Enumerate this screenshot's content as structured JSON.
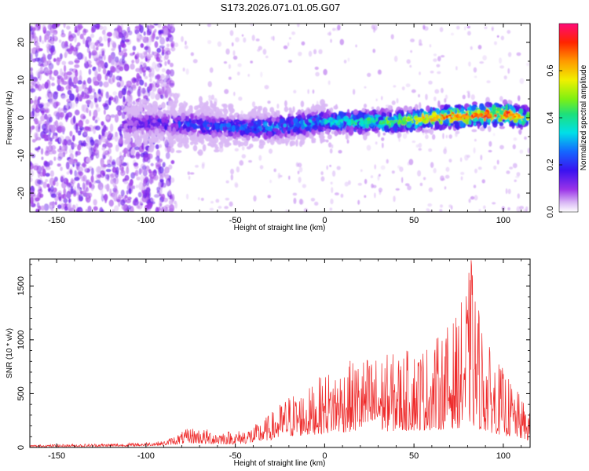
{
  "title": "S173.2026.071.01.05.G07",
  "chart_data": [
    {
      "type": "heatmap",
      "xlabel": "Height of straight line (km)",
      "ylabel": "Frequency (Hz)",
      "xlim": [
        -165,
        115
      ],
      "ylim": [
        -25,
        25
      ],
      "xticks": [
        -150,
        -100,
        -50,
        0,
        50,
        100
      ],
      "yticks": [
        -20,
        -10,
        0,
        10,
        20
      ],
      "colorbar": {
        "label": "Normalized spectral amplitude",
        "range": [
          0,
          0.8
        ],
        "ticks": [
          0.0,
          0.2,
          0.4,
          0.6
        ]
      },
      "ridge": {
        "x": [
          -110,
          -90,
          -70,
          -50,
          -30,
          -10,
          0,
          20,
          40,
          60,
          80,
          100,
          112
        ],
        "frequency_hz": [
          -1.5,
          -1.5,
          -2,
          -2.5,
          -2.5,
          -1.5,
          -1,
          -1,
          -1,
          0,
          0.5,
          1,
          0
        ],
        "peak_amplitude": [
          0.15,
          0.2,
          0.25,
          0.25,
          0.3,
          0.35,
          0.35,
          0.4,
          0.45,
          0.6,
          0.7,
          0.75,
          0.55
        ]
      },
      "grid": false
    },
    {
      "type": "line",
      "xlabel": "Height of straight line (km)",
      "ylabel": "SNR (10 * v/v)",
      "xlim": [
        -165,
        115
      ],
      "ylim": [
        0,
        1750
      ],
      "xticks": [
        -150,
        -100,
        -50,
        0,
        50,
        100
      ],
      "yticks": [
        0,
        500,
        1000,
        1500
      ],
      "color": "#ee2a2a",
      "envelope": {
        "x": [
          -165,
          -110,
          -90,
          -75,
          -65,
          -50,
          -40,
          -30,
          -20,
          -10,
          0,
          20,
          40,
          60,
          75,
          82,
          90,
          100,
          110,
          115
        ],
        "upper": [
          25,
          40,
          60,
          190,
          170,
          150,
          200,
          320,
          500,
          540,
          700,
          850,
          880,
          980,
          1250,
          1740,
          1000,
          730,
          470,
          320
        ],
        "lower": [
          5,
          10,
          20,
          40,
          30,
          30,
          40,
          70,
          100,
          110,
          130,
          150,
          150,
          160,
          180,
          190,
          150,
          110,
          80,
          60
        ]
      },
      "peak": {
        "x": 82,
        "y": 1740
      },
      "grid": false
    }
  ]
}
